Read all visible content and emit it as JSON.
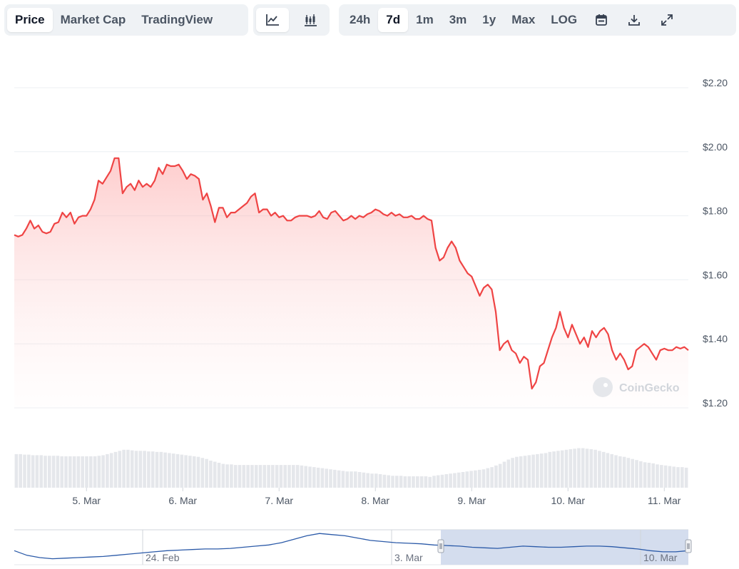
{
  "tabs": [
    {
      "label": "Price",
      "active": true
    },
    {
      "label": "Market Cap",
      "active": false
    },
    {
      "label": "TradingView",
      "active": false
    }
  ],
  "chart_types": [
    {
      "icon": "line-chart-icon",
      "active": true
    },
    {
      "icon": "candlestick-chart-icon",
      "active": false
    }
  ],
  "ranges": [
    {
      "label": "24h",
      "active": false
    },
    {
      "label": "7d",
      "active": true
    },
    {
      "label": "1m",
      "active": false
    },
    {
      "label": "3m",
      "active": false
    },
    {
      "label": "1y",
      "active": false
    },
    {
      "label": "Max",
      "active": false
    },
    {
      "label": "LOG",
      "active": false
    }
  ],
  "tools": [
    "calendar-icon",
    "download-icon",
    "expand-icon"
  ],
  "watermark": "CoinGecko",
  "colors": {
    "line": "#ef4444",
    "fill": "#fecaca",
    "volume": "#e5e7eb",
    "navigator_line": "#2b5aa8",
    "navigator_selection": "#cfd9ec"
  },
  "chart_data": {
    "type": "area",
    "yticks": [
      "$2.20",
      "$2.00",
      "$1.80",
      "$1.60",
      "$1.40",
      "$1.20"
    ],
    "ylim": [
      1.2,
      2.2
    ],
    "xticks": [
      "5. Mar",
      "6. Mar",
      "7. Mar",
      "8. Mar",
      "9. Mar",
      "10. Mar",
      "11. Mar"
    ],
    "price_x_range": [
      "2025-03-04 06:00",
      "2025-03-11 06:00"
    ],
    "x_tick_values": [
      "2025-03-05",
      "2025-03-06",
      "2025-03-07",
      "2025-03-08",
      "2025-03-09",
      "2025-03-10",
      "2025-03-11"
    ],
    "price": [
      1.74,
      1.735,
      1.74,
      1.76,
      1.785,
      1.76,
      1.77,
      1.75,
      1.745,
      1.75,
      1.775,
      1.78,
      1.81,
      1.795,
      1.81,
      1.775,
      1.795,
      1.8,
      1.8,
      1.82,
      1.85,
      1.91,
      1.9,
      1.92,
      1.94,
      1.98,
      1.98,
      1.87,
      1.89,
      1.9,
      1.88,
      1.91,
      1.89,
      1.9,
      1.89,
      1.91,
      1.95,
      1.93,
      1.96,
      1.955,
      1.955,
      1.96,
      1.94,
      1.915,
      1.93,
      1.925,
      1.915,
      1.85,
      1.87,
      1.83,
      1.78,
      1.825,
      1.825,
      1.795,
      1.81,
      1.81,
      1.82,
      1.83,
      1.84,
      1.86,
      1.87,
      1.81,
      1.82,
      1.82,
      1.8,
      1.81,
      1.795,
      1.8,
      1.785,
      1.785,
      1.795,
      1.8,
      1.8,
      1.8,
      1.795,
      1.8,
      1.815,
      1.795,
      1.79,
      1.81,
      1.815,
      1.8,
      1.785,
      1.79,
      1.8,
      1.79,
      1.8,
      1.795,
      1.805,
      1.81,
      1.82,
      1.815,
      1.805,
      1.8,
      1.81,
      1.8,
      1.805,
      1.795,
      1.795,
      1.8,
      1.79,
      1.79,
      1.8,
      1.79,
      1.785,
      1.7,
      1.66,
      1.67,
      1.7,
      1.72,
      1.7,
      1.66,
      1.64,
      1.62,
      1.61,
      1.58,
      1.55,
      1.575,
      1.585,
      1.57,
      1.5,
      1.38,
      1.4,
      1.41,
      1.38,
      1.37,
      1.34,
      1.36,
      1.35,
      1.26,
      1.28,
      1.33,
      1.34,
      1.38,
      1.42,
      1.45,
      1.5,
      1.45,
      1.42,
      1.46,
      1.43,
      1.4,
      1.42,
      1.39,
      1.44,
      1.42,
      1.44,
      1.45,
      1.43,
      1.38,
      1.35,
      1.37,
      1.35,
      1.32,
      1.33,
      1.38,
      1.39,
      1.4,
      1.39,
      1.37,
      1.35,
      1.38,
      1.385,
      1.38,
      1.38,
      1.39,
      1.385,
      1.39,
      1.38
    ],
    "volume": [
      0.62,
      0.62,
      0.61,
      0.61,
      0.6,
      0.6,
      0.6,
      0.59,
      0.59,
      0.59,
      0.59,
      0.58,
      0.58,
      0.58,
      0.58,
      0.58,
      0.58,
      0.58,
      0.58,
      0.58,
      0.59,
      0.6,
      0.62,
      0.64,
      0.66,
      0.68,
      0.7,
      0.7,
      0.69,
      0.68,
      0.68,
      0.68,
      0.67,
      0.67,
      0.66,
      0.66,
      0.65,
      0.64,
      0.63,
      0.62,
      0.61,
      0.6,
      0.59,
      0.58,
      0.57,
      0.55,
      0.53,
      0.5,
      0.48,
      0.46,
      0.44,
      0.43,
      0.43,
      0.42,
      0.42,
      0.42,
      0.42,
      0.42,
      0.42,
      0.42,
      0.42,
      0.42,
      0.42,
      0.42,
      0.42,
      0.42,
      0.42,
      0.42,
      0.42,
      0.41,
      0.4,
      0.39,
      0.38,
      0.37,
      0.36,
      0.35,
      0.34,
      0.33,
      0.32,
      0.31,
      0.3,
      0.3,
      0.3,
      0.29,
      0.28,
      0.27,
      0.26,
      0.26,
      0.25,
      0.24,
      0.23,
      0.22,
      0.22,
      0.22,
      0.21,
      0.21,
      0.21,
      0.21,
      0.21,
      0.21,
      0.2,
      0.22,
      0.23,
      0.24,
      0.25,
      0.26,
      0.27,
      0.28,
      0.29,
      0.3,
      0.31,
      0.32,
      0.33,
      0.34,
      0.36,
      0.38,
      0.41,
      0.44,
      0.48,
      0.52,
      0.55,
      0.57,
      0.58,
      0.59,
      0.6,
      0.61,
      0.62,
      0.63,
      0.64,
      0.66,
      0.67,
      0.68,
      0.69,
      0.7,
      0.71,
      0.72,
      0.73,
      0.73,
      0.72,
      0.71,
      0.7,
      0.68,
      0.66,
      0.64,
      0.62,
      0.6,
      0.58,
      0.57,
      0.55,
      0.53,
      0.51,
      0.49,
      0.47,
      0.46,
      0.45,
      0.43,
      0.42,
      0.41,
      0.4,
      0.39,
      0.38,
      0.38,
      0.37
    ],
    "navigator": {
      "labels": [
        "24. Feb",
        "3. Mar",
        "10. Mar"
      ],
      "price": [
        1.22,
        1.14,
        1.1,
        1.08,
        1.09,
        1.1,
        1.11,
        1.12,
        1.14,
        1.16,
        1.18,
        1.2,
        1.22,
        1.23,
        1.24,
        1.25,
        1.25,
        1.26,
        1.28,
        1.3,
        1.32,
        1.36,
        1.42,
        1.48,
        1.52,
        1.5,
        1.48,
        1.44,
        1.4,
        1.38,
        1.36,
        1.35,
        1.34,
        1.32,
        1.31,
        1.3,
        1.28,
        1.27,
        1.26,
        1.28,
        1.3,
        1.29,
        1.28,
        1.28,
        1.29,
        1.3,
        1.3,
        1.29,
        1.27,
        1.25,
        1.22,
        1.2,
        1.2,
        1.22
      ]
    }
  }
}
